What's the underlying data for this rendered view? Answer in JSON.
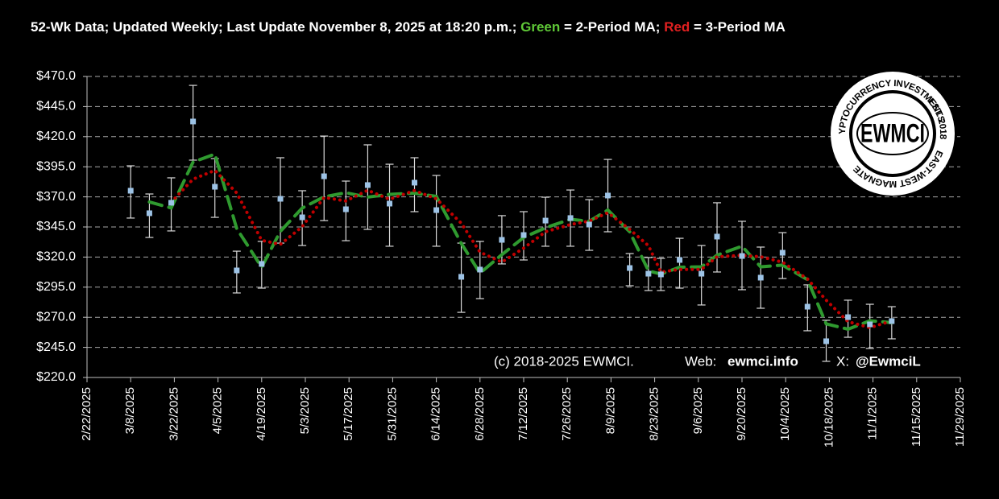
{
  "chart_data": {
    "type": "scatter",
    "title_parts": [
      "52-Wk Data; Updated Weekly; Last Update November 8, 2025 at 18:20 p.m.; ",
      "Green",
      " = 2-Period MA; ",
      "Red",
      " = 3-Period MA"
    ],
    "title_colors": [
      "#ffffff",
      "#5fc837",
      "#ffffff",
      "#e02020",
      "#ffffff"
    ],
    "annotation": {
      "copyright": "(c) 2018-2025 EWMCI.",
      "web_label": "Web:",
      "web": "ewmci.info",
      "x_label": "X:",
      "x_handle": "@EwmciL",
      "highlight_color": "#e8e82a"
    },
    "logo": {
      "center": "EWMCI",
      "top": "CRYPTOCURRENCY INVESTMENTS",
      "right": "EST. 2018",
      "bottom": "EAST-WEST MAGNATE"
    },
    "x": [
      "2025-03-08",
      "2025-03-14",
      "2025-03-21",
      "2025-03-28",
      "2025-04-04",
      "2025-04-11",
      "2025-04-19",
      "2025-04-25",
      "2025-05-02",
      "2025-05-09",
      "2025-05-16",
      "2025-05-23",
      "2025-05-30",
      "2025-06-07",
      "2025-06-14",
      "2025-06-22",
      "2025-06-28",
      "2025-07-05",
      "2025-07-12",
      "2025-07-19",
      "2025-07-27",
      "2025-08-02",
      "2025-08-08",
      "2025-08-15",
      "2025-08-21",
      "2025-08-25",
      "2025-08-31",
      "2025-09-07",
      "2025-09-12",
      "2025-09-20",
      "2025-09-26",
      "2025-10-03",
      "2025-10-11",
      "2025-10-17",
      "2025-10-24",
      "2025-10-31",
      "2025-11-07"
    ],
    "values": [
      375.1,
      356.4,
      365.1,
      432.6,
      378.4,
      308.9,
      314.3,
      368.4,
      353.0,
      387.1,
      359.7,
      379.8,
      364.4,
      381.8,
      359.0,
      303.6,
      309.6,
      334.3,
      338.3,
      350.3,
      352.4,
      347.0,
      371.1,
      310.9,
      306.2,
      305.6,
      317.6,
      306.2,
      337.0,
      320.9,
      302.9,
      323.6,
      278.8,
      250.1,
      270.1,
      264.1,
      266.8
    ],
    "high": [
      395.8,
      372.4,
      385.8,
      462.6,
      401.8,
      324.9,
      333.0,
      402.5,
      375.1,
      420.5,
      383.1,
      413.2,
      397.1,
      402.5,
      387.8,
      331.6,
      333.0,
      354.4,
      357.7,
      369.7,
      375.7,
      367.7,
      401.1,
      322.9,
      319.6,
      318.9,
      335.6,
      329.6,
      365.1,
      349.7,
      328.3,
      340.3,
      296.9,
      267.5,
      284.2,
      280.8,
      278.8
    ],
    "low": [
      352.4,
      336.3,
      341.7,
      400.5,
      353.0,
      290.2,
      294.2,
      331.6,
      329.6,
      350.3,
      333.6,
      343.0,
      329.0,
      357.7,
      329.0,
      274.1,
      285.5,
      314.3,
      317.6,
      329.0,
      329.0,
      325.6,
      341.0,
      296.2,
      292.2,
      292.2,
      294.2,
      280.2,
      307.6,
      292.9,
      277.5,
      302.2,
      258.8,
      233.4,
      253.4,
      244.1,
      252.1
    ],
    "color": "#9dc3e6",
    "error_color": "#d9d9d9",
    "ma2_values": [
      null,
      365.8,
      360.8,
      398.9,
      405.5,
      343.7,
      311.6,
      341.4,
      360.7,
      370.1,
      373.4,
      369.8,
      372.1,
      373.1,
      370.4,
      331.3,
      306.6,
      322.0,
      336.3,
      344.3,
      351.4,
      349.7,
      359.1,
      341.0,
      308.6,
      305.9,
      311.6,
      311.9,
      321.6,
      329.0,
      311.9,
      313.3,
      301.2,
      264.5,
      260.1,
      267.1,
      265.5
    ],
    "ma2_color": "#2f9a2f",
    "ma3_values": [
      null,
      null,
      365.5,
      384.7,
      392.0,
      373.3,
      333.9,
      330.5,
      345.2,
      369.5,
      366.6,
      375.5,
      368.0,
      375.3,
      368.4,
      348.1,
      324.1,
      315.8,
      327.4,
      341.0,
      347.0,
      349.9,
      356.8,
      343.0,
      329.4,
      307.6,
      309.8,
      309.8,
      320.3,
      321.4,
      320.3,
      315.8,
      301.8,
      284.2,
      266.3,
      261.4,
      267.0
    ],
    "ma3_color": "#c00000",
    "xlim": [
      "2025-02-22",
      "2025-11-29"
    ],
    "xticks": [
      {
        "value": "2025-02-22",
        "label": "2/22/2025"
      },
      {
        "value": "2025-03-08",
        "label": "3/8/2025"
      },
      {
        "value": "2025-03-22",
        "label": "3/22/2025"
      },
      {
        "value": "2025-04-05",
        "label": "4/5/2025"
      },
      {
        "value": "2025-04-19",
        "label": "4/19/2025"
      },
      {
        "value": "2025-05-03",
        "label": "5/3/2025"
      },
      {
        "value": "2025-05-17",
        "label": "5/17/2025"
      },
      {
        "value": "2025-05-31",
        "label": "5/31/2025"
      },
      {
        "value": "2025-06-14",
        "label": "6/14/2025"
      },
      {
        "value": "2025-06-28",
        "label": "6/28/2025"
      },
      {
        "value": "2025-07-12",
        "label": "7/12/2025"
      },
      {
        "value": "2025-07-26",
        "label": "7/26/2025"
      },
      {
        "value": "2025-08-09",
        "label": "8/9/2025"
      },
      {
        "value": "2025-08-23",
        "label": "8/23/2025"
      },
      {
        "value": "2025-09-06",
        "label": "9/6/2025"
      },
      {
        "value": "2025-09-20",
        "label": "9/20/2025"
      },
      {
        "value": "2025-10-04",
        "label": "10/4/2025"
      },
      {
        "value": "2025-10-18",
        "label": "10/18/2025"
      },
      {
        "value": "2025-11-01",
        "label": "11/1/2025"
      },
      {
        "value": "2025-11-15",
        "label": "11/15/2025"
      },
      {
        "value": "2025-11-29",
        "label": "11/29/2025"
      }
    ],
    "ylim": [
      220,
      470
    ],
    "yticks": [
      {
        "value": 220,
        "label": "$220.0"
      },
      {
        "value": 245,
        "label": "$245.0"
      },
      {
        "value": 270,
        "label": "$270.0"
      },
      {
        "value": 295,
        "label": "$295.0"
      },
      {
        "value": 320,
        "label": "$320.0"
      },
      {
        "value": 345,
        "label": "$345.0"
      },
      {
        "value": 370,
        "label": "$370.0"
      },
      {
        "value": 395,
        "label": "$395.0"
      },
      {
        "value": 420,
        "label": "$420.0"
      },
      {
        "value": 445,
        "label": "$445.0"
      },
      {
        "value": 470,
        "label": "$470.0"
      }
    ],
    "grid": true
  }
}
